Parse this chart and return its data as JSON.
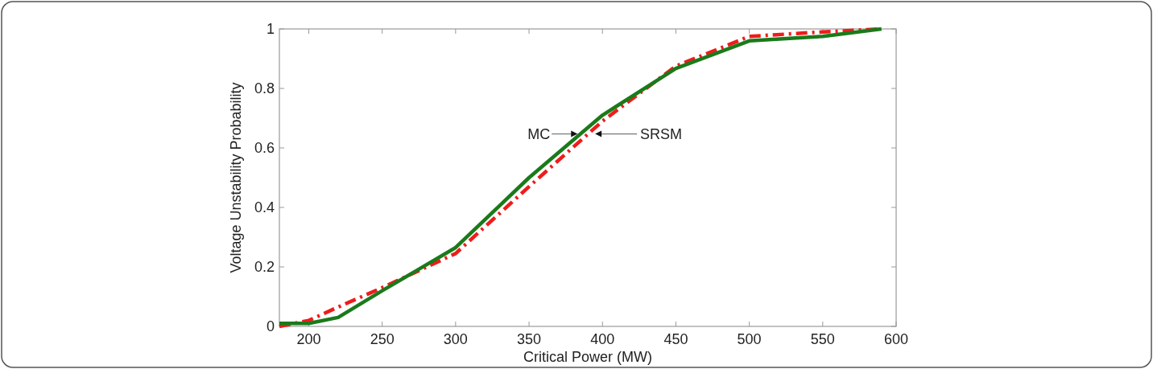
{
  "chart_data": {
    "type": "line",
    "xlabel": "Critical Power (MW)",
    "ylabel": "Voltage Unstability Probability",
    "xlim": [
      180,
      600
    ],
    "xticks": [
      200,
      250,
      300,
      350,
      400,
      450,
      500,
      550,
      600
    ],
    "ylim": [
      0,
      1
    ],
    "yticks": [
      0,
      0.2,
      0.4,
      0.6,
      0.8,
      1
    ],
    "grid": false,
    "series": [
      {
        "color": "#ee1c1c",
        "line_style": "dashed",
        "x": [
          180,
          200,
          220,
          250,
          300,
          350,
          400,
          450,
          500,
          550,
          590
        ],
        "values": [
          0.0,
          0.02,
          0.065,
          0.13,
          0.245,
          0.47,
          0.69,
          0.875,
          0.975,
          0.99,
          1.0
        ]
      },
      {
        "color": "#1a7a1a",
        "line_style": "solid",
        "x": [
          180,
          200,
          220,
          250,
          300,
          350,
          400,
          450,
          500,
          550,
          590
        ],
        "values": [
          0.01,
          0.01,
          0.03,
          0.12,
          0.265,
          0.5,
          0.71,
          0.867,
          0.96,
          0.975,
          1.0
        ]
      }
    ],
    "annotations": [
      {
        "text": "MC",
        "x": 383,
        "y": 0.647
      },
      {
        "text": "SRSM",
        "x": 395,
        "y": 0.647
      }
    ]
  }
}
